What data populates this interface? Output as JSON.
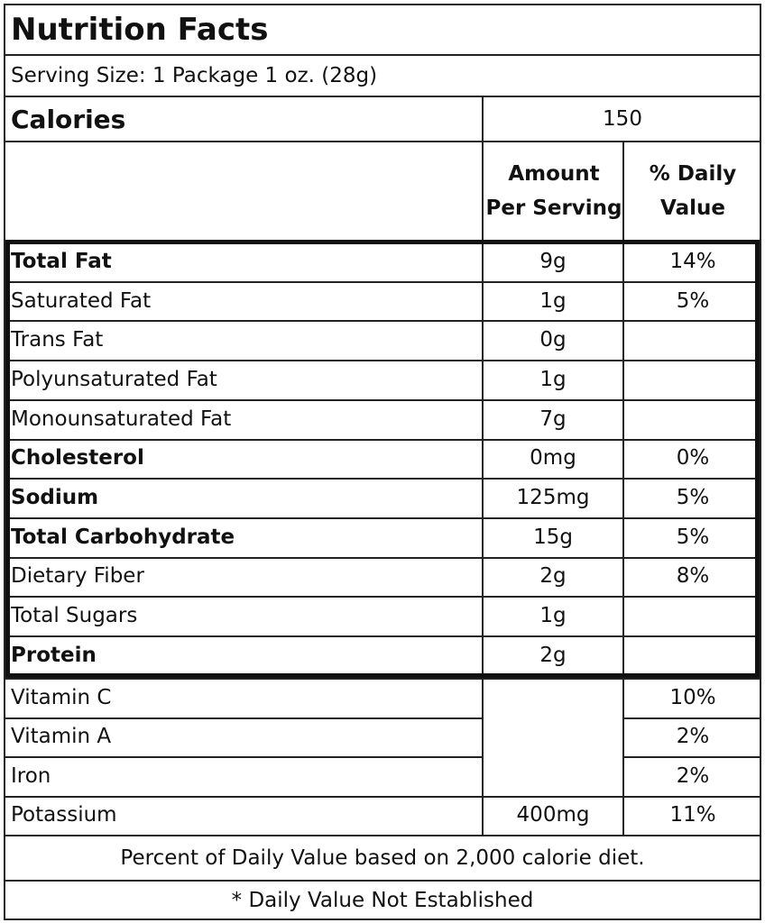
{
  "title": "Nutrition Facts",
  "serving_size": "Serving Size: 1 Package 1 oz. (28g)",
  "calories": {
    "label": "Calories",
    "value": "150"
  },
  "headers": {
    "amount": "Amount\nPer Serving",
    "daily_value": "% Daily\nValue"
  },
  "nutrients": [
    {
      "name": "Total Fat",
      "amount": "9g",
      "dv": "14%"
    },
    {
      "name": "Saturated Fat",
      "amount": "1g",
      "dv": "5%"
    },
    {
      "name": "Trans Fat",
      "amount": "0g",
      "dv": ""
    },
    {
      "name": "Polyunsaturated Fat",
      "amount": "1g",
      "dv": ""
    },
    {
      "name": "Monounsaturated Fat",
      "amount": "7g",
      "dv": ""
    },
    {
      "name": "Cholesterol",
      "amount": "0mg",
      "dv": "0%"
    },
    {
      "name": "Sodium",
      "amount": "125mg",
      "dv": "5%"
    },
    {
      "name": "Total Carbohydrate",
      "amount": "15g",
      "dv": "5%"
    },
    {
      "name": "Dietary Fiber",
      "amount": "2g",
      "dv": "8%"
    },
    {
      "name": "Total Sugars",
      "amount": "1g",
      "dv": ""
    },
    {
      "name": "Protein",
      "amount": "2g",
      "dv": ""
    }
  ],
  "vitamins": [
    {
      "name": "Vitamin C",
      "amount": "",
      "dv": "10%"
    },
    {
      "name": "Vitamin A",
      "amount": "",
      "dv": "2%"
    },
    {
      "name": "Iron",
      "amount": "",
      "dv": "2%"
    },
    {
      "name": "Potassium",
      "amount": "400mg",
      "dv": "11%"
    }
  ],
  "footnotes": {
    "percent_note": "Percent of Daily Value based on 2,000 calorie diet.",
    "asterisk_note": "* Daily Value Not Established"
  }
}
